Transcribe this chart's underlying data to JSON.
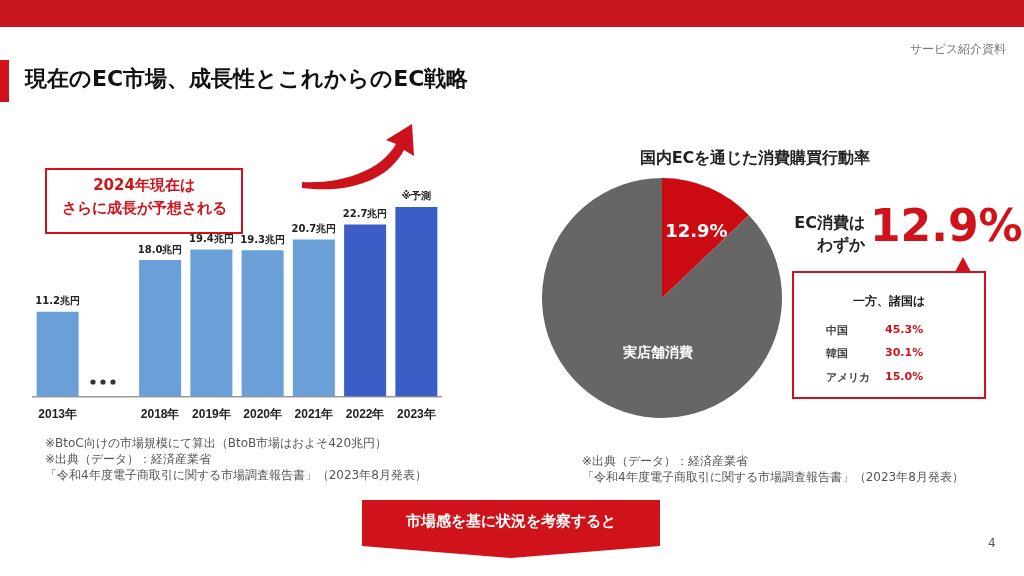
{
  "chart_data": [
    {
      "type": "bar",
      "title": "現在のEC市場、成長性とこれからのEC戦略",
      "categories": [
        "2013年",
        null,
        "2018年",
        "2019年",
        "2020年",
        "2021年",
        "2022年",
        "2023年"
      ],
      "values": [
        11.2,
        null,
        18.0,
        19.4,
        19.3,
        20.7,
        22.7,
        25.0
      ],
      "colors": [
        "#6a9fd8",
        "#6a9fd8",
        "#6a9fd8",
        "#6a9fd8",
        "#6a9fd8",
        "#6a9fd8",
        "#3b5dc6",
        "#3b5dc6"
      ],
      "value_labels": [
        "11.2兆円",
        null,
        "18.0兆円",
        "19.4兆円",
        "19.3兆円",
        "20.7兆円",
        "22.7兆円",
        null
      ],
      "annotations": [
        "2024年現在は",
        "さらに成長が予想される",
        {
          "text": "※予測",
          "x": "2023年",
          "y": 25.0
        },
        "※BtoC向けの市場規模にて算出（BtoB市場はおよそ420兆円）",
        "※出典（データ）：経済産業省",
        "「令和4年度電子商取引に関する市場調査報告書」（2023年8月発表）"
      ]
    },
    {
      "type": "pie",
      "title": "国内ECを通じた消費購買行動率",
      "categories": [
        null,
        "実店舗消費"
      ],
      "values": [
        12.9,
        87.1
      ],
      "colors": [
        "#cc0a12",
        "#666666"
      ],
      "value_labels": [
        "12.9%",
        null
      ],
      "annotations": [
        "EC消費は",
        "わずか",
        "12.9%",
        "一方、諸国は",
        "中国",
        "45.3%",
        "韓国",
        "30.1%",
        "アメリカ",
        "15.0%",
        "※出典（データ）：経済産業省",
        "「令和4年度電子商取引に関する市場調査報告書」（2023年8月発表）",
        "サービス紹介資料",
        "市場感を基に状況を考察すると",
        "4"
      ]
    }
  ]
}
